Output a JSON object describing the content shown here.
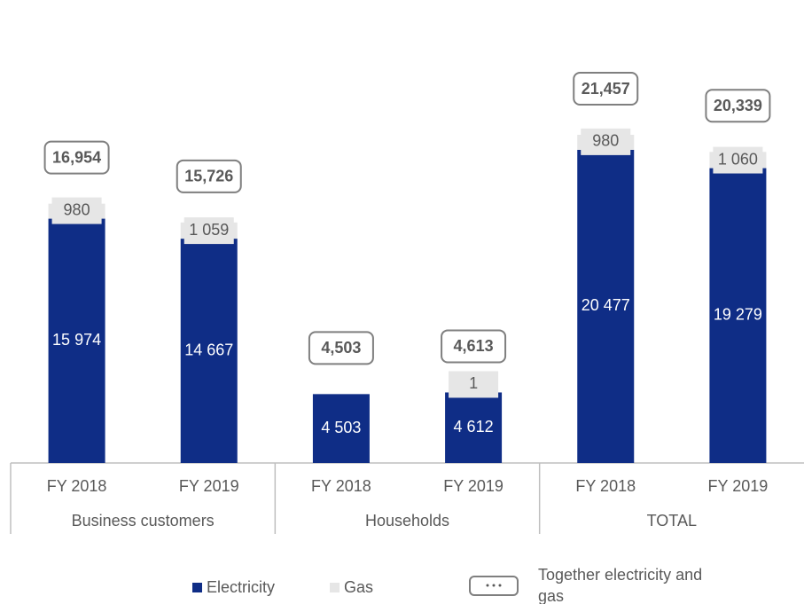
{
  "chart_data": {
    "type": "bar",
    "stacked": true,
    "categories": [
      "FY 2018",
      "FY 2019",
      "FY 2018",
      "FY 2019",
      "FY 2018",
      "FY 2019"
    ],
    "groups": [
      "Business customers",
      "Households",
      "TOTAL"
    ],
    "series": [
      {
        "name": "Electricity",
        "color": "#0f2d86",
        "values": [
          15974,
          14667,
          4503,
          4612,
          20477,
          19279
        ],
        "value_labels": [
          "15 974",
          "14 667",
          "4 503",
          "4 612",
          "20 477",
          "19 279"
        ]
      },
      {
        "name": "Gas",
        "color": "#e6e6e6",
        "values": [
          980,
          1059,
          null,
          1,
          980,
          1060
        ],
        "value_labels": [
          "980",
          "1 059",
          null,
          "1",
          "980",
          "1 060"
        ]
      },
      {
        "name": "Together electricity and gas",
        "color": "#7f7f7f",
        "values": [
          16954,
          15726,
          4503,
          4613,
          21457,
          20339
        ],
        "value_labels": [
          "16,954",
          "15,726",
          "4,503",
          "4,613",
          "21,457",
          "20,339"
        ]
      }
    ],
    "legend": "bottom"
  }
}
